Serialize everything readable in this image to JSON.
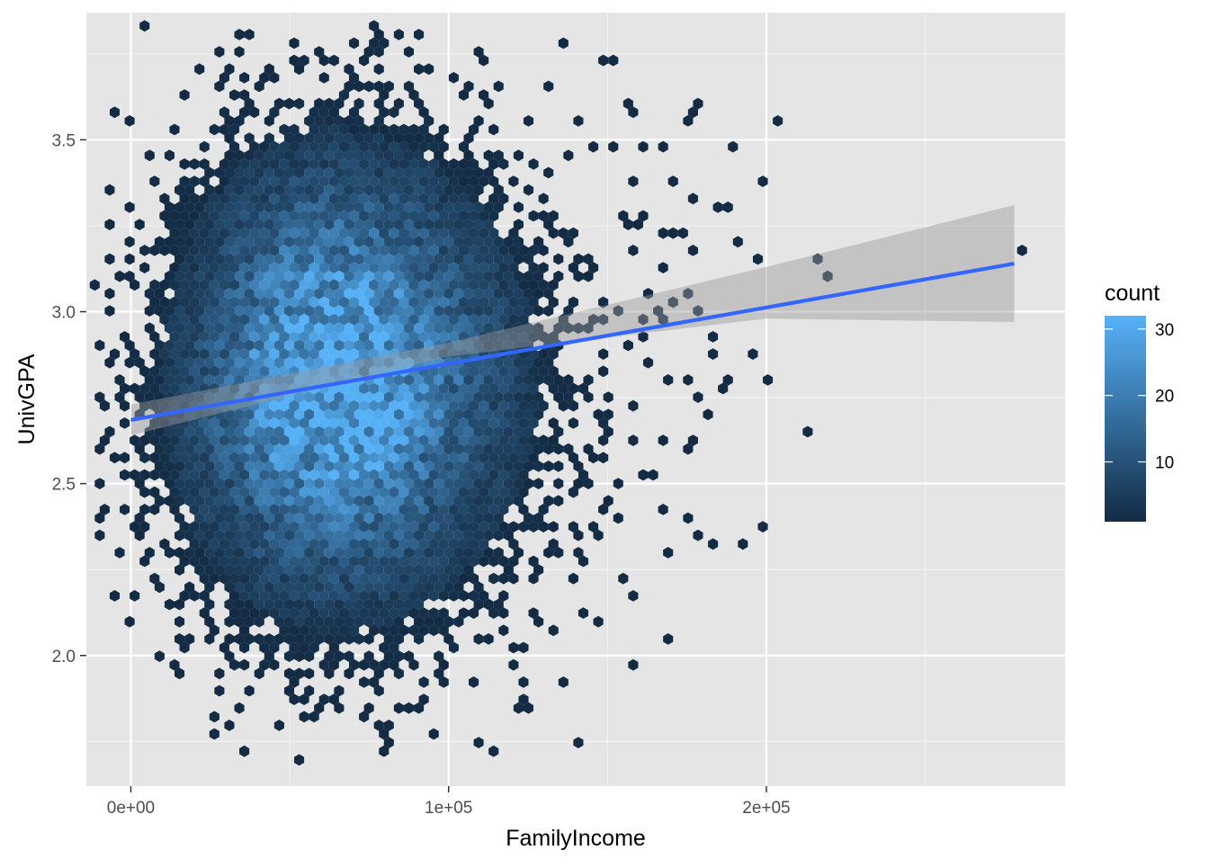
{
  "chart_data": {
    "type": "hexbin",
    "xlabel": "FamilyIncome",
    "ylabel": "UnivGPA",
    "x_ticks": [
      {
        "value": 0,
        "label": "0e+00"
      },
      {
        "value": 100000,
        "label": "1e+05"
      },
      {
        "value": 200000,
        "label": "2e+05"
      }
    ],
    "y_ticks": [
      {
        "value": 2.0,
        "label": "2.0"
      },
      {
        "value": 2.5,
        "label": "2.5"
      },
      {
        "value": 3.0,
        "label": "3.0"
      },
      {
        "value": 3.5,
        "label": "3.5"
      }
    ],
    "xlim": [
      -14000,
      294000
    ],
    "ylim": [
      1.62,
      3.87
    ],
    "grid": true,
    "panel_background": "#e5e5e5",
    "fill_scale": {
      "name": "count",
      "range": [
        1,
        32
      ],
      "low_color": "#132b43",
      "high_color": "#56b1f7",
      "breaks": [
        {
          "value": 10,
          "label": "10"
        },
        {
          "value": 20,
          "label": "20"
        },
        {
          "value": 30,
          "label": "30"
        }
      ]
    },
    "density": {
      "center_x": 63000,
      "center_y": 2.8,
      "sd_x": 26000,
      "sd_y": 0.36,
      "peak_count": 32
    },
    "smooth": {
      "method": "lm",
      "color": "#3366ff",
      "x": [
        0,
        278000
      ],
      "y": [
        2.685,
        3.14
      ],
      "band_color": "#999999",
      "band": [
        {
          "x": 0,
          "lower": 2.64,
          "upper": 2.73
        },
        {
          "x": 100000,
          "lower": 2.87,
          "upper": 2.91
        },
        {
          "x": 200000,
          "lower": 2.98,
          "upper": 3.13
        },
        {
          "x": 278000,
          "lower": 2.97,
          "upper": 3.31
        }
      ]
    },
    "outlier_bins": [
      [
        0,
        3.16
      ],
      [
        5000,
        2.28
      ],
      [
        9000,
        2.23
      ],
      [
        18000,
        3.42
      ],
      [
        16000,
        2.04
      ],
      [
        28000,
        1.94
      ],
      [
        35000,
        1.73
      ],
      [
        34000,
        1.85
      ],
      [
        39000,
        3.65
      ],
      [
        52000,
        3.78
      ],
      [
        70000,
        3.78
      ],
      [
        77000,
        3.78
      ],
      [
        90000,
        3.8
      ],
      [
        137000,
        3.78
      ],
      [
        149000,
        3.73
      ],
      [
        152000,
        3.73
      ],
      [
        112000,
        3.72
      ],
      [
        155000,
        3.61
      ],
      [
        161000,
        3.47
      ],
      [
        168000,
        3.48
      ],
      [
        178000,
        3.58
      ],
      [
        180000,
        3.61
      ],
      [
        176000,
        3.55
      ],
      [
        188000,
        3.48
      ],
      [
        205000,
        3.56
      ],
      [
        200000,
        3.39
      ],
      [
        170000,
        3.37
      ],
      [
        176000,
        3.32
      ],
      [
        186000,
        3.3
      ],
      [
        189000,
        3.3
      ],
      [
        190000,
        3.21
      ],
      [
        178000,
        3.18
      ],
      [
        168000,
        3.13
      ],
      [
        159000,
        3.19
      ],
      [
        197000,
        3.16
      ],
      [
        215000,
        3.16
      ],
      [
        219000,
        3.11
      ],
      [
        280000,
        3.18
      ],
      [
        183000,
        2.87
      ],
      [
        195000,
        2.87
      ],
      [
        201000,
        2.8
      ],
      [
        187000,
        2.8
      ],
      [
        185000,
        2.77
      ],
      [
        176000,
        2.8
      ],
      [
        168000,
        2.8
      ],
      [
        162000,
        2.84
      ],
      [
        182000,
        2.7
      ],
      [
        167000,
        2.63
      ],
      [
        178000,
        2.63
      ],
      [
        174000,
        2.59
      ],
      [
        165000,
        2.53
      ],
      [
        160000,
        2.52
      ],
      [
        153000,
        2.5
      ],
      [
        168000,
        2.42
      ],
      [
        174000,
        2.4
      ],
      [
        177000,
        2.34
      ],
      [
        184000,
        2.32
      ],
      [
        193000,
        2.32
      ],
      [
        198000,
        2.37
      ],
      [
        170000,
        2.3
      ],
      [
        145000,
        2.37
      ],
      [
        150000,
        2.43
      ],
      [
        213000,
        2.66
      ],
      [
        168000,
        2.04
      ],
      [
        100000,
        1.97
      ],
      [
        107000,
        1.91
      ],
      [
        93000,
        1.87
      ],
      [
        67000,
        1.84
      ],
      [
        51000,
        1.86
      ],
      [
        141000,
        3.56
      ],
      [
        145000,
        3.48
      ],
      [
        155000,
        3.29
      ],
      [
        159000,
        3.25
      ],
      [
        166000,
        3.24
      ],
      [
        170000,
        3.24
      ],
      [
        174000,
        3.24
      ],
      [
        162000,
        3.06
      ],
      [
        165000,
        3.01
      ],
      [
        172000,
        3.03
      ],
      [
        180000,
        3.01
      ],
      [
        175000,
        3.06
      ],
      [
        169000,
        2.97
      ],
      [
        182000,
        2.93
      ],
      [
        160000,
        2.92
      ],
      [
        157000,
        2.72
      ],
      [
        151000,
        2.69
      ],
      [
        150000,
        2.76
      ],
      [
        144000,
        2.8
      ],
      [
        148000,
        2.97
      ],
      [
        152000,
        2.99
      ],
      [
        155000,
        2.9
      ],
      [
        160000,
        2.98
      ]
    ]
  }
}
